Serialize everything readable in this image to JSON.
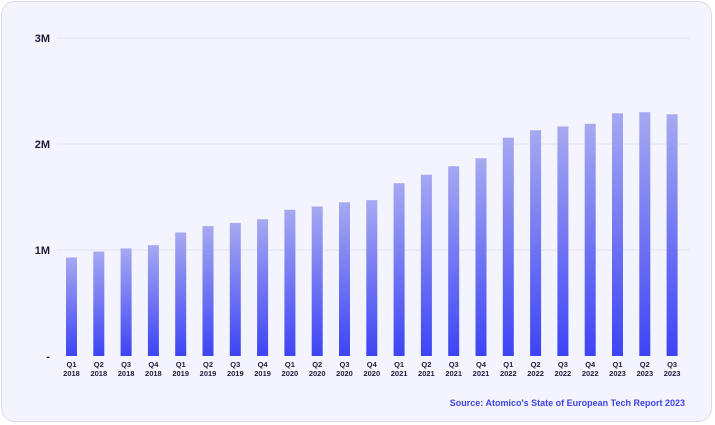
{
  "chart_data": {
    "type": "bar",
    "title": "",
    "xlabel": "",
    "ylabel": "",
    "categories": [
      [
        "Q1",
        "2018"
      ],
      [
        "Q2",
        "2018"
      ],
      [
        "Q3",
        "2018"
      ],
      [
        "Q4",
        "2018"
      ],
      [
        "Q1",
        "2019"
      ],
      [
        "Q2",
        "2019"
      ],
      [
        "Q3",
        "2019"
      ],
      [
        "Q4",
        "2019"
      ],
      [
        "Q1",
        "2020"
      ],
      [
        "Q2",
        "2020"
      ],
      [
        "Q3",
        "2020"
      ],
      [
        "Q4",
        "2020"
      ],
      [
        "Q1",
        "2021"
      ],
      [
        "Q2",
        "2021"
      ],
      [
        "Q3",
        "2021"
      ],
      [
        "Q4",
        "2021"
      ],
      [
        "Q1",
        "2022"
      ],
      [
        "Q2",
        "2022"
      ],
      [
        "Q3",
        "2022"
      ],
      [
        "Q4",
        "2022"
      ],
      [
        "Q1",
        "2023"
      ],
      [
        "Q2",
        "2023"
      ],
      [
        "Q3",
        "2023"
      ]
    ],
    "values": [
      930000,
      985000,
      1015000,
      1045000,
      1165000,
      1225000,
      1255000,
      1290000,
      1380000,
      1410000,
      1450000,
      1470000,
      1630000,
      1710000,
      1790000,
      1865000,
      2060000,
      2130000,
      2165000,
      2190000,
      2290000,
      2300000,
      2280000
    ],
    "ylim": [
      0,
      3000000
    ],
    "y_ticks": [
      {
        "value": 0,
        "label": "-"
      },
      {
        "value": 1000000,
        "label": "1M"
      },
      {
        "value": 2000000,
        "label": "2M"
      },
      {
        "value": 3000000,
        "label": "3M"
      }
    ],
    "grid": true,
    "colors": {
      "bar_top": "#a6a9f1",
      "bar_bottom": "#3d44f5",
      "grid": "#e4e5f5"
    }
  },
  "source": "Source: Atomico's State of European Tech Report 2023"
}
